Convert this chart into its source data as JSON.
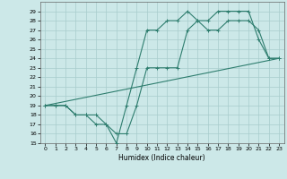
{
  "xlabel": "Humidex (Indice chaleur)",
  "bg_color": "#cce8e8",
  "grid_color": "#a8cccc",
  "line_color": "#2e7d6e",
  "xlim": [
    -0.5,
    23.5
  ],
  "ylim": [
    15,
    30
  ],
  "xticks": [
    0,
    1,
    2,
    3,
    4,
    5,
    6,
    7,
    8,
    9,
    10,
    11,
    12,
    13,
    14,
    15,
    16,
    17,
    18,
    19,
    20,
    21,
    22,
    23
  ],
  "yticks": [
    15,
    16,
    17,
    18,
    19,
    20,
    21,
    22,
    23,
    24,
    25,
    26,
    27,
    28,
    29
  ],
  "line1_x": [
    0,
    1,
    2,
    3,
    4,
    5,
    6,
    7,
    8,
    9,
    10,
    11,
    12,
    13,
    14,
    15,
    16,
    17,
    18,
    19,
    20,
    21,
    22,
    23
  ],
  "line1_y": [
    19,
    19,
    19,
    18,
    18,
    18,
    17,
    16,
    16,
    19,
    23,
    23,
    23,
    23,
    27,
    28,
    27,
    27,
    28,
    28,
    28,
    27,
    24,
    24
  ],
  "line2_x": [
    0,
    1,
    2,
    3,
    4,
    5,
    6,
    7,
    8,
    9,
    10,
    11,
    12,
    13,
    14,
    15,
    16,
    17,
    18,
    19,
    20,
    21,
    22,
    23
  ],
  "line2_y": [
    19,
    19,
    19,
    18,
    18,
    17,
    17,
    15,
    19,
    23,
    27,
    27,
    28,
    28,
    29,
    28,
    28,
    29,
    29,
    29,
    29,
    26,
    24,
    24
  ],
  "line3_x": [
    0,
    23
  ],
  "line3_y": [
    19,
    24
  ]
}
